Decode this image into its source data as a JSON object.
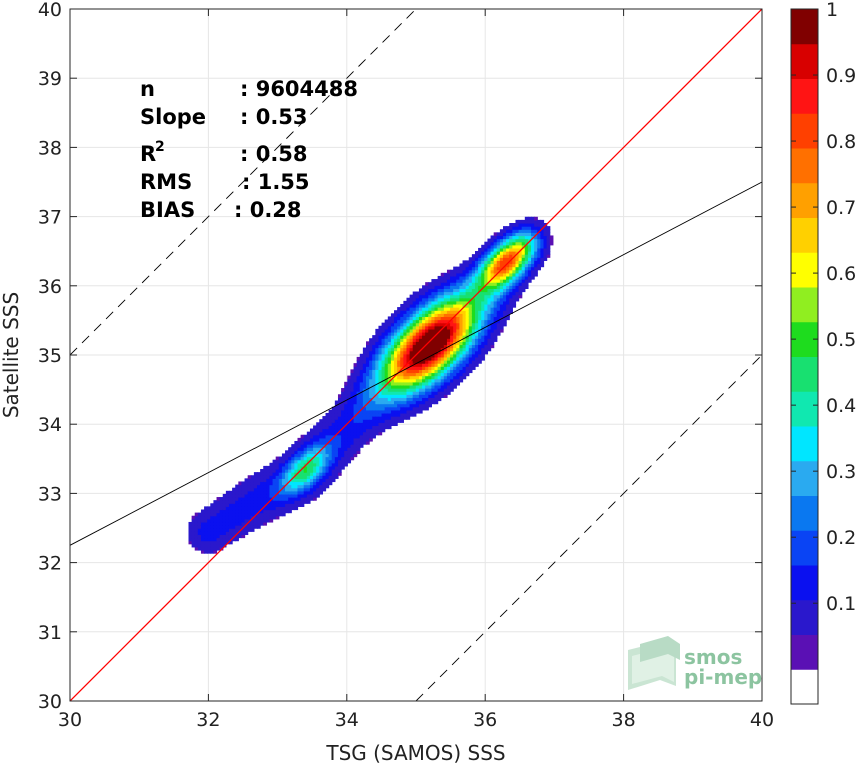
{
  "chart_data": {
    "type": "scatter",
    "subtype": "density-contour",
    "xlabel": "TSG (SAMOS) SSS",
    "ylabel": "Satellite SSS",
    "xlim": [
      30,
      40
    ],
    "ylim": [
      30,
      40
    ],
    "x_ticks": [
      "30",
      "32",
      "34",
      "36",
      "38",
      "40"
    ],
    "y_ticks": [
      "30",
      "31",
      "32",
      "33",
      "34",
      "35",
      "36",
      "37",
      "38",
      "39",
      "40"
    ],
    "grid": true,
    "stats": [
      {
        "label": "n",
        "value": ": 9604488"
      },
      {
        "label": "Slope",
        "value": ": 0.53"
      },
      {
        "label": "R",
        "sup": "2",
        "value": ": 0.58"
      },
      {
        "label": "RMS",
        "value": ": 1.55"
      },
      {
        "label": "BIAS",
        "value": ": 0.28"
      }
    ],
    "lines": {
      "identity": {
        "slope": 1,
        "intercept": 0,
        "color": "#ff0000"
      },
      "regression": {
        "points": [
          [
            30,
            32.25
          ],
          [
            40,
            37.5
          ]
        ],
        "color": "#000000"
      },
      "upper_bound": {
        "offset": 5,
        "style": "dashed"
      },
      "lower_bound": {
        "offset": -5,
        "style": "dashed"
      }
    },
    "density_peaks": [
      {
        "x": 35.2,
        "y": 35.15,
        "level": 1.0
      },
      {
        "x": 36.3,
        "y": 36.35,
        "level": 0.7
      },
      {
        "x": 33.4,
        "y": 33.35,
        "level": 0.35
      }
    ],
    "colorbar": {
      "min": 0,
      "max": 1,
      "tick_labels": [
        "0.1",
        "0.2",
        "0.3",
        "0.4",
        "0.5",
        "0.6",
        "0.7",
        "0.8",
        "0.9",
        "1"
      ],
      "colors": [
        "#ffffff",
        "#5a10b4",
        "#2a18cc",
        "#0a10f0",
        "#0a44f4",
        "#0a78f0",
        "#2aaaf0",
        "#00e6ff",
        "#10e8b0",
        "#18e070",
        "#1edc1e",
        "#90ee20",
        "#ffff00",
        "#ffd000",
        "#ffa000",
        "#ff7000",
        "#ff4000",
        "#ff1414",
        "#d80000",
        "#800000"
      ]
    }
  },
  "logo": {
    "line1": "smos",
    "line2": "pi-mep"
  }
}
